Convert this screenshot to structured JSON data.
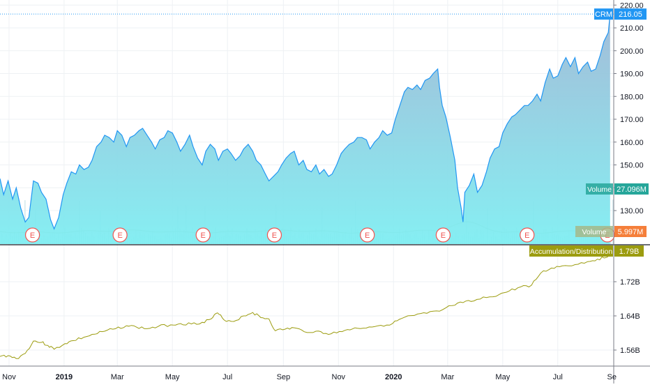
{
  "chart_data": {
    "type": "area",
    "symbol": "CRM",
    "price_axis": {
      "ticks": [
        130,
        140,
        150,
        160,
        170,
        180,
        190,
        200,
        210,
        220
      ],
      "tick_labels": [
        "130.00",
        "140.00",
        "150.00",
        "160.00",
        "170.00",
        "180.00",
        "190.00",
        "200.00",
        "210.00",
        "220.00"
      ],
      "last_price_label": "216.05",
      "last_price": 216.05
    },
    "x_axis": {
      "labels": [
        "Nov",
        "2019",
        "Mar",
        "May",
        "Jul",
        "Sep",
        "Nov",
        "2020",
        "Mar",
        "May",
        "Jul",
        "Se"
      ],
      "dates": [
        "2018-11-01",
        "2019-01-01",
        "2019-03-01",
        "2019-05-01",
        "2019-07-01",
        "2019-09-01",
        "2019-11-01",
        "2020-01-01",
        "2020-03-01",
        "2020-05-01",
        "2020-07-01",
        "2020-09-01"
      ],
      "bold": [
        false,
        true,
        false,
        false,
        false,
        false,
        false,
        true,
        false,
        false,
        false,
        false
      ],
      "range": [
        "2018-10-22",
        "2020-09-01"
      ]
    },
    "price_series": {
      "name": "CRM",
      "line_color": "#2196f3",
      "fill_top": "#9fb9d6",
      "fill_bottom": "#7feef2",
      "points": [
        [
          "2018-10-22",
          144
        ],
        [
          "2018-10-26",
          137
        ],
        [
          "2018-10-31",
          143
        ],
        [
          "2018-11-05",
          135
        ],
        [
          "2018-11-09",
          140
        ],
        [
          "2018-11-14",
          131
        ],
        [
          "2018-11-19",
          125
        ],
        [
          "2018-11-23",
          127
        ],
        [
          "2018-11-28",
          143
        ],
        [
          "2018-12-03",
          142
        ],
        [
          "2018-12-07",
          138
        ],
        [
          "2018-12-12",
          135
        ],
        [
          "2018-12-17",
          126
        ],
        [
          "2018-12-21",
          122
        ],
        [
          "2018-12-26",
          127
        ],
        [
          "2018-12-31",
          137
        ],
        [
          "2019-01-04",
          142
        ],
        [
          "2019-01-09",
          147
        ],
        [
          "2019-01-14",
          146
        ],
        [
          "2019-01-18",
          150
        ],
        [
          "2019-01-23",
          148
        ],
        [
          "2019-01-28",
          149
        ],
        [
          "2019-02-01",
          152
        ],
        [
          "2019-02-06",
          158
        ],
        [
          "2019-02-11",
          160
        ],
        [
          "2019-02-15",
          163
        ],
        [
          "2019-02-20",
          162
        ],
        [
          "2019-02-25",
          160
        ],
        [
          "2019-03-01",
          165
        ],
        [
          "2019-03-06",
          163
        ],
        [
          "2019-03-11",
          158
        ],
        [
          "2019-03-15",
          162
        ],
        [
          "2019-03-20",
          163
        ],
        [
          "2019-03-25",
          165
        ],
        [
          "2019-03-29",
          166
        ],
        [
          "2019-04-03",
          163
        ],
        [
          "2019-04-08",
          160
        ],
        [
          "2019-04-12",
          157
        ],
        [
          "2019-04-17",
          161
        ],
        [
          "2019-04-22",
          162
        ],
        [
          "2019-04-26",
          165
        ],
        [
          "2019-05-01",
          164
        ],
        [
          "2019-05-06",
          160
        ],
        [
          "2019-05-10",
          156
        ],
        [
          "2019-05-15",
          159
        ],
        [
          "2019-05-20",
          163
        ],
        [
          "2019-05-24",
          158
        ],
        [
          "2019-05-29",
          153
        ],
        [
          "2019-06-03",
          150
        ],
        [
          "2019-06-07",
          156
        ],
        [
          "2019-06-12",
          159
        ],
        [
          "2019-06-17",
          157
        ],
        [
          "2019-06-21",
          152
        ],
        [
          "2019-06-26",
          156
        ],
        [
          "2019-07-01",
          157
        ],
        [
          "2019-07-05",
          155
        ],
        [
          "2019-07-10",
          152
        ],
        [
          "2019-07-15",
          154
        ],
        [
          "2019-07-19",
          157
        ],
        [
          "2019-07-24",
          159
        ],
        [
          "2019-07-29",
          156
        ],
        [
          "2019-08-02",
          152
        ],
        [
          "2019-08-07",
          150
        ],
        [
          "2019-08-12",
          146
        ],
        [
          "2019-08-16",
          143
        ],
        [
          "2019-08-21",
          145
        ],
        [
          "2019-08-26",
          147
        ],
        [
          "2019-08-30",
          150
        ],
        [
          "2019-09-04",
          153
        ],
        [
          "2019-09-09",
          155
        ],
        [
          "2019-09-13",
          156
        ],
        [
          "2019-09-18",
          150
        ],
        [
          "2019-09-23",
          152
        ],
        [
          "2019-09-27",
          148
        ],
        [
          "2019-10-02",
          147
        ],
        [
          "2019-10-07",
          150
        ],
        [
          "2019-10-11",
          146
        ],
        [
          "2019-10-16",
          148
        ],
        [
          "2019-10-21",
          145
        ],
        [
          "2019-10-25",
          146
        ],
        [
          "2019-10-30",
          150
        ],
        [
          "2019-11-04",
          155
        ],
        [
          "2019-11-08",
          157
        ],
        [
          "2019-11-13",
          159
        ],
        [
          "2019-11-18",
          160
        ],
        [
          "2019-11-22",
          162
        ],
        [
          "2019-11-27",
          162
        ],
        [
          "2019-12-02",
          161
        ],
        [
          "2019-12-06",
          157
        ],
        [
          "2019-12-11",
          160
        ],
        [
          "2019-12-16",
          162
        ],
        [
          "2019-12-20",
          165
        ],
        [
          "2019-12-25",
          163
        ],
        [
          "2019-12-30",
          164
        ],
        [
          "2020-01-03",
          170
        ],
        [
          "2020-01-08",
          176
        ],
        [
          "2020-01-13",
          182
        ],
        [
          "2020-01-17",
          184
        ],
        [
          "2020-01-22",
          183
        ],
        [
          "2020-01-27",
          185
        ],
        [
          "2020-01-31",
          183
        ],
        [
          "2020-02-05",
          187
        ],
        [
          "2020-02-10",
          188
        ],
        [
          "2020-02-14",
          190
        ],
        [
          "2020-02-19",
          192
        ],
        [
          "2020-02-21",
          184
        ],
        [
          "2020-02-24",
          176
        ],
        [
          "2020-02-28",
          171
        ],
        [
          "2020-03-04",
          162
        ],
        [
          "2020-03-09",
          152
        ],
        [
          "2020-03-12",
          140
        ],
        [
          "2020-03-16",
          131
        ],
        [
          "2020-03-18",
          125
        ],
        [
          "2020-03-20",
          138
        ],
        [
          "2020-03-25",
          141
        ],
        [
          "2020-03-30",
          146
        ],
        [
          "2020-04-03",
          138
        ],
        [
          "2020-04-08",
          141
        ],
        [
          "2020-04-13",
          147
        ],
        [
          "2020-04-17",
          153
        ],
        [
          "2020-04-22",
          157
        ],
        [
          "2020-04-27",
          158
        ],
        [
          "2020-05-01",
          164
        ],
        [
          "2020-05-06",
          168
        ],
        [
          "2020-05-11",
          171
        ],
        [
          "2020-05-15",
          172
        ],
        [
          "2020-05-20",
          174
        ],
        [
          "2020-05-25",
          176
        ],
        [
          "2020-05-29",
          176
        ],
        [
          "2020-06-03",
          178
        ],
        [
          "2020-06-08",
          181
        ],
        [
          "2020-06-12",
          178
        ],
        [
          "2020-06-17",
          186
        ],
        [
          "2020-06-22",
          192
        ],
        [
          "2020-06-26",
          188
        ],
        [
          "2020-07-01",
          189
        ],
        [
          "2020-07-06",
          194
        ],
        [
          "2020-07-10",
          197
        ],
        [
          "2020-07-15",
          193
        ],
        [
          "2020-07-20",
          197
        ],
        [
          "2020-07-24",
          190
        ],
        [
          "2020-07-29",
          193
        ],
        [
          "2020-08-03",
          195
        ],
        [
          "2020-08-07",
          191
        ],
        [
          "2020-08-12",
          192
        ],
        [
          "2020-08-17",
          198
        ],
        [
          "2020-08-21",
          204
        ],
        [
          "2020-08-26",
          208
        ],
        [
          "2020-08-28",
          216
        ]
      ]
    },
    "volume": {
      "label": "Volume",
      "value_label": "27.096M",
      "badge_color": "#26a69a",
      "ma_label": "Volume",
      "ma_value_label": "5.997M",
      "ma_badge_color": "#f57f3a",
      "ma_line_color": "#a5b98a",
      "bar_color": "#d6e9ed"
    },
    "earnings_markers": {
      "glyph": "E",
      "color": "#ef5350",
      "dates": [
        "2018-11-27",
        "2019-03-04",
        "2019-06-04",
        "2019-08-22",
        "2019-12-03",
        "2020-02-25",
        "2020-05-28",
        "2020-08-25"
      ]
    },
    "accumulation_distribution": {
      "name": "Accumulation/Distribution",
      "value_label": "1.79B",
      "color": "#9c9c0f",
      "ticks": [
        1.56,
        1.64,
        1.72
      ],
      "tick_labels": [
        "1.56B",
        "1.64B",
        "1.72B"
      ],
      "points": [
        [
          "2018-10-22",
          1.545
        ],
        [
          "2018-10-31",
          1.547
        ],
        [
          "2018-11-09",
          1.54
        ],
        [
          "2018-11-19",
          1.552
        ],
        [
          "2018-11-28",
          1.581
        ],
        [
          "2018-12-07",
          1.578
        ],
        [
          "2018-12-14",
          1.571
        ],
        [
          "2018-12-21",
          1.562
        ],
        [
          "2019-01-02",
          1.575
        ],
        [
          "2019-01-11",
          1.582
        ],
        [
          "2019-01-23",
          1.59
        ],
        [
          "2019-02-04",
          1.597
        ],
        [
          "2019-02-15",
          1.604
        ],
        [
          "2019-02-27",
          1.61
        ],
        [
          "2019-03-11",
          1.617
        ],
        [
          "2019-03-22",
          1.614
        ],
        [
          "2019-04-03",
          1.61
        ],
        [
          "2019-04-15",
          1.615
        ],
        [
          "2019-04-29",
          1.619
        ],
        [
          "2019-05-10",
          1.622
        ],
        [
          "2019-05-22",
          1.621
        ],
        [
          "2019-06-03",
          1.625
        ],
        [
          "2019-06-13",
          1.633
        ],
        [
          "2019-06-20",
          1.647
        ],
        [
          "2019-06-27",
          1.631
        ],
        [
          "2019-07-08",
          1.627
        ],
        [
          "2019-07-19",
          1.64
        ],
        [
          "2019-07-29",
          1.648
        ],
        [
          "2019-08-07",
          1.636
        ],
        [
          "2019-08-16",
          1.633
        ],
        [
          "2019-08-23",
          1.605
        ],
        [
          "2019-09-03",
          1.609
        ],
        [
          "2019-09-13",
          1.612
        ],
        [
          "2019-09-24",
          1.603
        ],
        [
          "2019-10-07",
          1.604
        ],
        [
          "2019-10-18",
          1.599
        ],
        [
          "2019-10-30",
          1.6
        ],
        [
          "2019-11-11",
          1.608
        ],
        [
          "2019-11-22",
          1.611
        ],
        [
          "2019-12-05",
          1.614
        ],
        [
          "2019-12-18",
          1.618
        ],
        [
          "2019-12-31",
          1.622
        ],
        [
          "2020-01-10",
          1.634
        ],
        [
          "2020-01-24",
          1.641
        ],
        [
          "2020-02-07",
          1.646
        ],
        [
          "2020-02-21",
          1.651
        ],
        [
          "2020-03-06",
          1.664
        ],
        [
          "2020-03-18",
          1.671
        ],
        [
          "2020-03-30",
          1.675
        ],
        [
          "2020-04-13",
          1.683
        ],
        [
          "2020-04-27",
          1.69
        ],
        [
          "2020-05-08",
          1.698
        ],
        [
          "2020-05-21",
          1.708
        ],
        [
          "2020-06-02",
          1.712
        ],
        [
          "2020-06-12",
          1.74
        ],
        [
          "2020-06-24",
          1.752
        ],
        [
          "2020-07-06",
          1.757
        ],
        [
          "2020-07-20",
          1.76
        ],
        [
          "2020-08-03",
          1.767
        ],
        [
          "2020-08-14",
          1.773
        ],
        [
          "2020-08-24",
          1.777
        ],
        [
          "2020-08-28",
          1.79
        ]
      ]
    },
    "grid": true
  }
}
